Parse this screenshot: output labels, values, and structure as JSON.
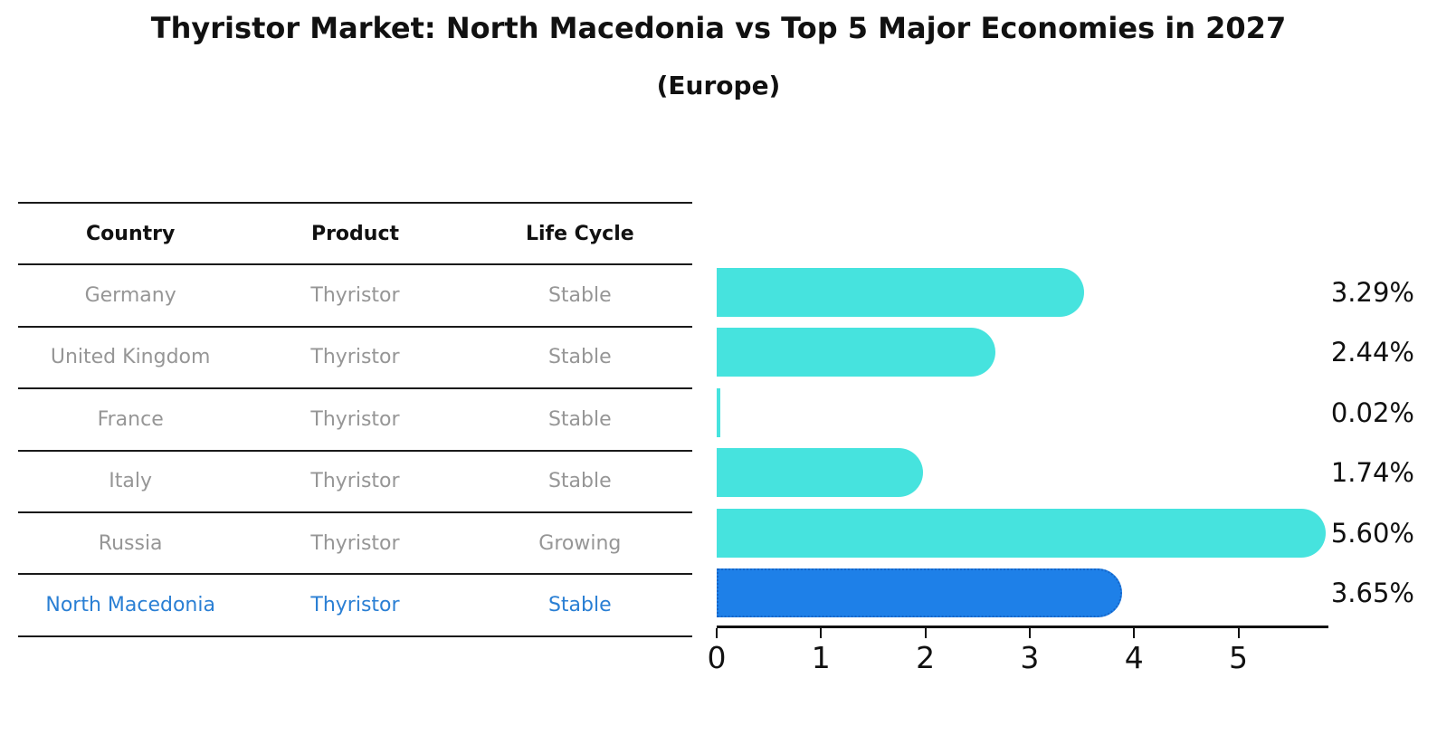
{
  "title": "Thyristor Market: North Macedonia vs Top 5 Major Economies in 2027",
  "subtitle": "(Europe)",
  "table": {
    "headers": [
      "Country",
      "Product",
      "Life Cycle"
    ],
    "highlight_text_color": "#2A7FD4",
    "rows": [
      {
        "country": "Germany",
        "product": "Thyristor",
        "life_cycle": "Stable",
        "highlighted": false
      },
      {
        "country": "United Kingdom",
        "product": "Thyristor",
        "life_cycle": "Stable",
        "highlighted": false
      },
      {
        "country": "France",
        "product": "Thyristor",
        "life_cycle": "Stable",
        "highlighted": false
      },
      {
        "country": "Italy",
        "product": "Thyristor",
        "life_cycle": "Stable",
        "highlighted": false
      },
      {
        "country": "Russia",
        "product": "Thyristor",
        "life_cycle": "Growing",
        "highlighted": false
      },
      {
        "country": "North Macedonia",
        "product": "Thyristor",
        "life_cycle": "Stable",
        "highlighted": true
      }
    ]
  },
  "chart_data": {
    "type": "bar",
    "orientation": "horizontal",
    "title": "Thyristor Market: North Macedonia vs Top 5 Major Economies in 2027",
    "subtitle": "(Europe)",
    "categories": [
      "Germany",
      "United Kingdom",
      "France",
      "Italy",
      "Russia",
      "North Macedonia"
    ],
    "values": [
      3.29,
      2.44,
      0.02,
      1.74,
      5.6,
      3.65
    ],
    "value_labels": [
      "3.29%",
      "2.44%",
      "0.02%",
      "1.74%",
      "5.60%",
      "3.65%"
    ],
    "x_ticks": [
      0,
      1,
      2,
      3,
      4,
      5
    ],
    "xlim": [
      0,
      5.86
    ],
    "xlabel": "",
    "ylabel": "",
    "grid": false,
    "legend": false,
    "bar_color": "#46E3DE",
    "highlight_index": 5,
    "highlight_bar_color": "#1E80E8",
    "highlight_border_color": "#1565C8",
    "axis_color": "#111111"
  }
}
